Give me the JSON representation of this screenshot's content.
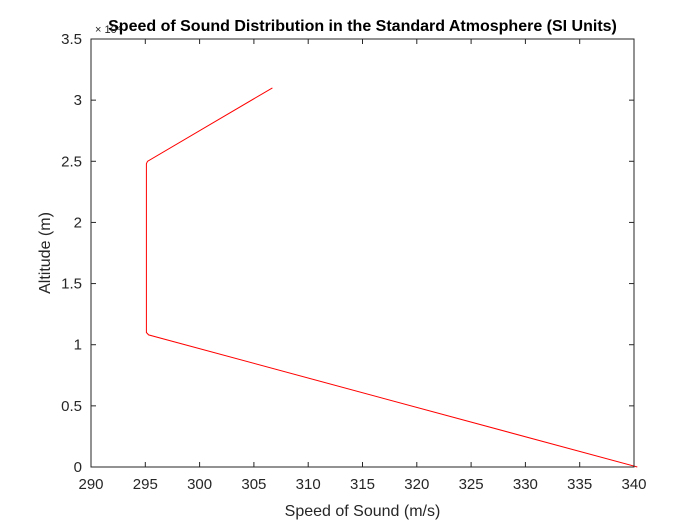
{
  "chart_data": {
    "type": "line",
    "title": "Speed of Sound Distribution in the Standard Atmosphere (SI Units)",
    "xlabel": "Speed of Sound (m/s)",
    "ylabel": "Altitude (m)",
    "xlim": [
      290,
      340
    ],
    "ylim": [
      0,
      35000
    ],
    "y_multiplier_label": "× 10⁴",
    "x_ticks": [
      290,
      295,
      300,
      305,
      310,
      315,
      320,
      325,
      330,
      335,
      340
    ],
    "y_ticks": [
      0,
      5000,
      10000,
      15000,
      20000,
      25000,
      30000,
      35000
    ],
    "y_tick_labels": [
      "0",
      "0.5",
      "1",
      "1.5",
      "2",
      "2.5",
      "3",
      "3.5"
    ],
    "grid": false,
    "box": true,
    "series": [
      {
        "color": "#ff0000",
        "x": [
          340.3,
          295.3,
          295.1,
          295.1,
          295.2,
          306.7
        ],
        "y": [
          0,
          10800,
          11000,
          24800,
          25000,
          31000
        ]
      }
    ]
  }
}
